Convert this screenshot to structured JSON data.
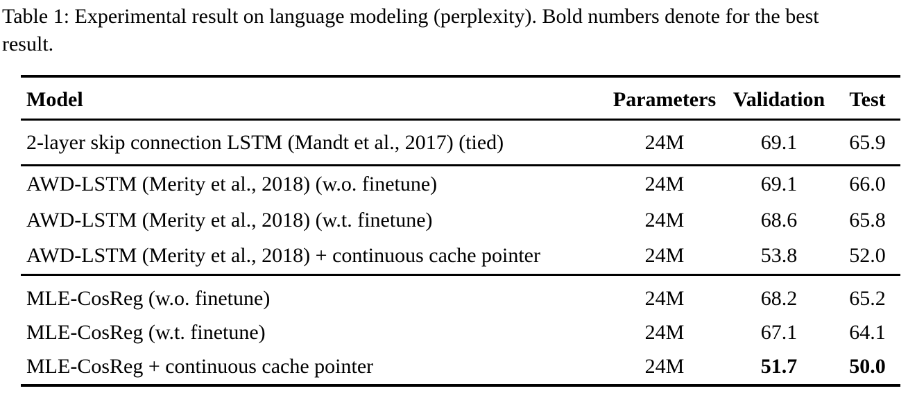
{
  "caption": {
    "line1": "Table 1: Experimental result on language modeling (perplexity). Bold numbers denote for the best",
    "line2": "result."
  },
  "table": {
    "columns": [
      "Model",
      "Parameters",
      "Validation",
      "Test"
    ],
    "sections": [
      {
        "name": "baseline",
        "rows": [
          {
            "model": "2-layer skip connection LSTM (Mandt et al., 2017) (tied)",
            "parameters": "24M",
            "validation": "69.1",
            "test": "65.9",
            "bold_values": false
          }
        ]
      },
      {
        "name": "awd-lstm",
        "rows": [
          {
            "model": "AWD-LSTM (Merity et al., 2018) (w.o. finetune)",
            "parameters": "24M",
            "validation": "69.1",
            "test": "66.0",
            "bold_values": false
          },
          {
            "model": "AWD-LSTM (Merity et al., 2018) (w.t. finetune)",
            "parameters": "24M",
            "validation": "68.6",
            "test": "65.8",
            "bold_values": false
          },
          {
            "model": "AWD-LSTM (Merity et al., 2018) + continuous cache pointer",
            "parameters": "24M",
            "validation": "53.8",
            "test": "52.0",
            "bold_values": false
          }
        ]
      },
      {
        "name": "mle-cosreg",
        "rows": [
          {
            "model": "MLE-CosReg (w.o. finetune)",
            "parameters": "24M",
            "validation": "68.2",
            "test": "65.2",
            "bold_values": false
          },
          {
            "model": "MLE-CosReg (w.t. finetune)",
            "parameters": "24M",
            "validation": "67.1",
            "test": "64.1",
            "bold_values": false
          },
          {
            "model": "MLE-CosReg + continuous cache pointer",
            "parameters": "24M",
            "validation": "51.7",
            "test": "50.0",
            "bold_values": true
          }
        ]
      }
    ]
  }
}
